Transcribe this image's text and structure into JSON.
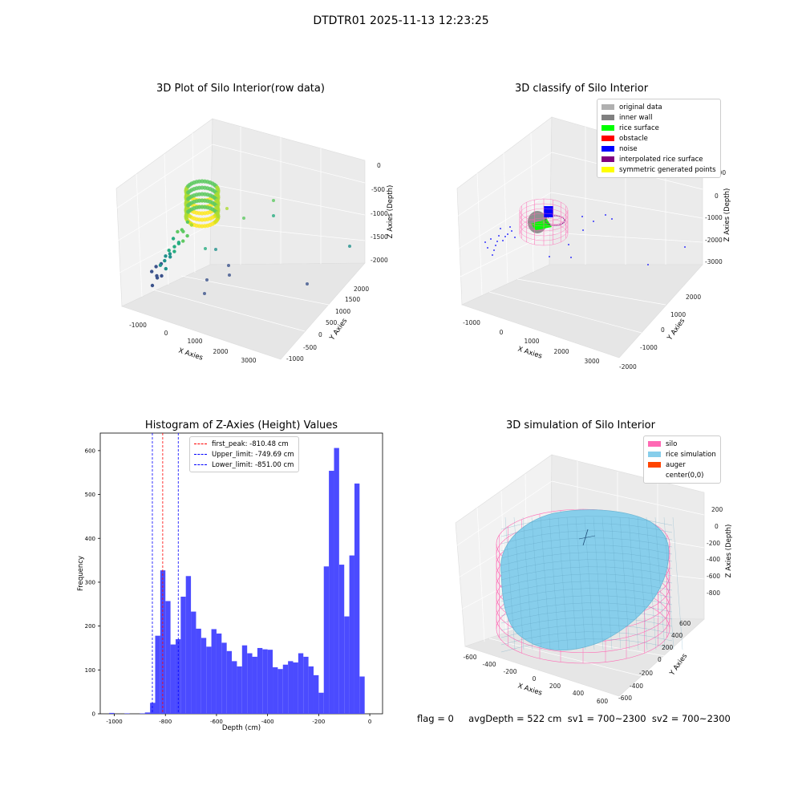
{
  "suptitle": "DTDTR01 2025-11-13 12:23:25",
  "footer": "flag = 0     avgDepth = 522 cm  sv1 = 700~2300  sv2 = 700~2300",
  "colors": {
    "histogram_bar": "#4b4bff",
    "first_peak": "#ff0000",
    "limits": "#0000ff",
    "silo": "#ff69b4",
    "rice": "#87ceeb",
    "auger": "#ff4500"
  },
  "chart_data": [
    {
      "type": "scatter",
      "subtype": "3d",
      "title": "3D Plot of Silo Interior(row data)",
      "xlabel": "X Axies",
      "ylabel": "Y Axies",
      "zlabel": "Z Axies (Depth)",
      "x_ticks": [
        "-1000",
        "0",
        "1000",
        "2000",
        "3000"
      ],
      "y_ticks": [
        "-1000",
        "-500",
        "0",
        "500",
        "1000",
        "1500",
        "2000"
      ],
      "z_ticks": [
        "0",
        "-500",
        "-1000",
        "-1500",
        "-2000"
      ],
      "colormap": "viridis"
    },
    {
      "type": "scatter",
      "subtype": "3d",
      "title": "3D classify of Silo Interior",
      "xlabel": "X Axies",
      "ylabel": "Y Axies",
      "zlabel": "Z Axies (Depth)",
      "x_ticks": [
        "-1000",
        "0",
        "1000",
        "2000",
        "3000"
      ],
      "y_ticks": [
        "-2000",
        "-1000",
        "0",
        "1000",
        "2000"
      ],
      "z_ticks": [
        "1000",
        "0",
        "-1000",
        "-2000",
        "-3000"
      ],
      "legend": [
        {
          "label": "original data",
          "color": "#b0b0b0"
        },
        {
          "label": "inner wall",
          "color": "#808080"
        },
        {
          "label": "rice surface",
          "color": "#00ff00"
        },
        {
          "label": "obstacle",
          "color": "#ff0000"
        },
        {
          "label": "noise",
          "color": "#0000ff"
        },
        {
          "label": "interpolated rice surface",
          "color": "#800080"
        },
        {
          "label": "symmetric generated points",
          "color": "#ffff00"
        }
      ],
      "legend_position": "upper right"
    },
    {
      "type": "bar",
      "subtype": "histogram",
      "title": "Histogram of Z-Axies (Height) Values",
      "xlabel": "Depth (cm)",
      "ylabel": "Frequency",
      "xlim": [
        -1055,
        50
      ],
      "ylim": [
        0,
        640
      ],
      "x_ticks": [
        -1000,
        -800,
        -600,
        -400,
        -200,
        0
      ],
      "y_ticks": [
        0,
        100,
        200,
        300,
        400,
        500,
        600
      ],
      "bin_width": 20,
      "bins": [
        {
          "x": -1010,
          "value": 2
        },
        {
          "x": -950,
          "value": 1
        },
        {
          "x": -890,
          "value": 1
        },
        {
          "x": -870,
          "value": 3
        },
        {
          "x": -850,
          "value": 25
        },
        {
          "x": -830,
          "value": 178
        },
        {
          "x": -810,
          "value": 327
        },
        {
          "x": -790,
          "value": 257
        },
        {
          "x": -770,
          "value": 158
        },
        {
          "x": -750,
          "value": 170
        },
        {
          "x": -730,
          "value": 267
        },
        {
          "x": -710,
          "value": 314
        },
        {
          "x": -690,
          "value": 233
        },
        {
          "x": -670,
          "value": 194
        },
        {
          "x": -650,
          "value": 173
        },
        {
          "x": -630,
          "value": 153
        },
        {
          "x": -610,
          "value": 193
        },
        {
          "x": -590,
          "value": 183
        },
        {
          "x": -570,
          "value": 162
        },
        {
          "x": -550,
          "value": 143
        },
        {
          "x": -530,
          "value": 120
        },
        {
          "x": -510,
          "value": 108
        },
        {
          "x": -490,
          "value": 156
        },
        {
          "x": -470,
          "value": 138
        },
        {
          "x": -450,
          "value": 130
        },
        {
          "x": -430,
          "value": 150
        },
        {
          "x": -410,
          "value": 147
        },
        {
          "x": -390,
          "value": 146
        },
        {
          "x": -370,
          "value": 106
        },
        {
          "x": -350,
          "value": 102
        },
        {
          "x": -330,
          "value": 112
        },
        {
          "x": -310,
          "value": 120
        },
        {
          "x": -290,
          "value": 117
        },
        {
          "x": -270,
          "value": 138
        },
        {
          "x": -250,
          "value": 130
        },
        {
          "x": -230,
          "value": 108
        },
        {
          "x": -210,
          "value": 88
        },
        {
          "x": -190,
          "value": 48
        },
        {
          "x": -170,
          "value": 336
        },
        {
          "x": -150,
          "value": 554
        },
        {
          "x": -130,
          "value": 606
        },
        {
          "x": -110,
          "value": 340
        },
        {
          "x": -90,
          "value": 222
        },
        {
          "x": -70,
          "value": 361
        },
        {
          "x": -50,
          "value": 525
        },
        {
          "x": -30,
          "value": 85
        }
      ],
      "vlines": [
        {
          "label": "first_peak: -810.48 cm",
          "x": -810.48,
          "color": "#ff0000"
        },
        {
          "label": "Upper_limit: -749.69 cm",
          "x": -749.69,
          "color": "#0000ff"
        },
        {
          "label": "Lower_limit: -851.00 cm",
          "x": -851.0,
          "color": "#0000ff"
        }
      ],
      "legend_position": "upper center"
    },
    {
      "type": "area",
      "subtype": "3d-surface",
      "title": "3D simulation of Silo Interior",
      "xlabel": "X Axies",
      "ylabel": "Y Axies",
      "zlabel": "Z Axies (Depth)",
      "x_ticks": [
        "-600",
        "-400",
        "-200",
        "0",
        "200",
        "400",
        "600"
      ],
      "y_ticks": [
        "-600",
        "-400",
        "-200",
        "0",
        "200",
        "400",
        "600"
      ],
      "z_ticks": [
        "200",
        "0",
        "-200",
        "-400",
        "-600",
        "-800"
      ],
      "legend": [
        {
          "label": "silo",
          "color": "#ff69b4"
        },
        {
          "label": "rice simulation",
          "color": "#87ceeb"
        },
        {
          "label": "auger",
          "color": "#ff4500"
        },
        {
          "label": "center(0,0)",
          "color": ""
        }
      ],
      "legend_position": "upper right"
    }
  ]
}
